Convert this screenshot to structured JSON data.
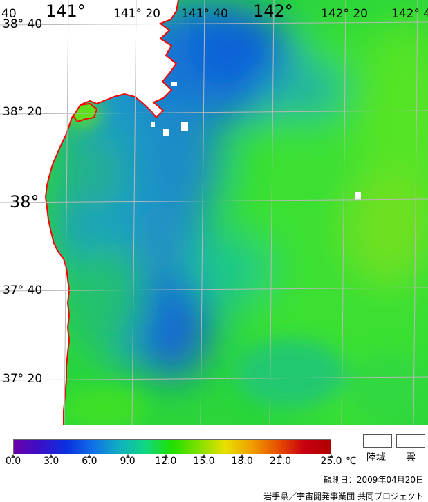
{
  "map": {
    "lon_labels_top": [
      {
        "text": "40",
        "style": "small"
      },
      {
        "text": "141°",
        "style": "big"
      },
      {
        "text": "141° 20",
        "style": "small"
      },
      {
        "text": "141° 40",
        "style": "small"
      },
      {
        "text": "142°",
        "style": "big"
      },
      {
        "text": "142° 20",
        "style": "small"
      },
      {
        "text": "142° 4",
        "style": "small"
      }
    ],
    "lat_labels_left": [
      {
        "text": "38° 40",
        "style": "small"
      },
      {
        "text": "38° 20",
        "style": "small"
      },
      {
        "text": "38°",
        "style": "big"
      },
      {
        "text": "37° 40",
        "style": "small"
      },
      {
        "text": "37° 20",
        "style": "small"
      }
    ],
    "colors": {
      "land": "#ffffff",
      "coastline": "#ff0000",
      "grid": "#b4b4b4",
      "cloud": "#ffffff"
    }
  },
  "legend": {
    "scale_min": 0.0,
    "scale_max": 25.0,
    "ticks": [
      "0.0",
      "3.0",
      "6.0",
      "9.0",
      "12.0",
      "15.0",
      "18.0",
      "21.0",
      "25.0"
    ],
    "unit": "℃",
    "gradient_colors": [
      "#6a00a8",
      "#3a10c8",
      "#0a30e0",
      "#1070e8",
      "#10b0c0",
      "#10d880",
      "#20e000",
      "#80e000",
      "#e8e000",
      "#f0a000",
      "#e85000",
      "#c80010",
      "#b00000"
    ],
    "land_label": "陸域",
    "cloud_label": "雲",
    "observation_date": "観測日：2009年04月20日",
    "credit": "岩手県／宇宙開発事業団 共同プロジェクト"
  }
}
